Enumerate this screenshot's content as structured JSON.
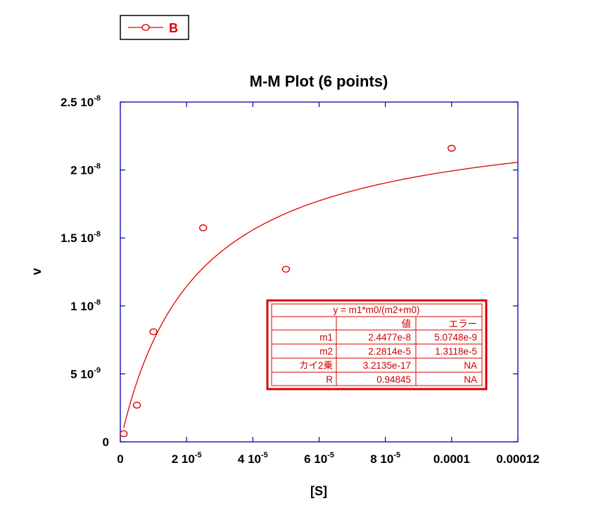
{
  "legend": {
    "label": "B"
  },
  "chart_data": {
    "type": "scatter",
    "title": "M-M Plot (6 points)",
    "xlabel": "[S]",
    "ylabel": "v",
    "xlim": [
      0,
      0.00012
    ],
    "ylim": [
      0,
      2.5e-08
    ],
    "x_ticks": [
      {
        "value": 0,
        "mant": "0",
        "exp": ""
      },
      {
        "value": 2e-05,
        "mant": "2 10",
        "exp": "-5"
      },
      {
        "value": 4e-05,
        "mant": "4 10",
        "exp": "-5"
      },
      {
        "value": 6e-05,
        "mant": "6 10",
        "exp": "-5"
      },
      {
        "value": 8e-05,
        "mant": "8 10",
        "exp": "-5"
      },
      {
        "value": 0.0001,
        "mant": "0.0001",
        "exp": ""
      },
      {
        "value": 0.00012,
        "mant": "0.00012",
        "exp": ""
      }
    ],
    "y_ticks": [
      {
        "value": 0,
        "mant": "0",
        "exp": ""
      },
      {
        "value": 5e-09,
        "mant": "5 10",
        "exp": "-9"
      },
      {
        "value": 1e-08,
        "mant": "1 10",
        "exp": "-8"
      },
      {
        "value": 1.5e-08,
        "mant": "1.5 10",
        "exp": "-8"
      },
      {
        "value": 2e-08,
        "mant": "2 10",
        "exp": "-8"
      },
      {
        "value": 2.5e-08,
        "mant": "2.5 10",
        "exp": "-8"
      }
    ],
    "series": [
      {
        "name": "B",
        "color": "#dd0000",
        "marker": "open-circle",
        "x": [
          1e-06,
          5e-06,
          1e-05,
          2.5e-05,
          5e-05,
          0.0001
        ],
        "y": [
          6e-10,
          2.7e-09,
          8.1e-09,
          1.575e-08,
          1.27e-08,
          2.16e-08
        ]
      }
    ],
    "fit": {
      "model": "michaelis-menten",
      "m1": 2.4477e-08,
      "m2": 2.2814e-05,
      "color": "#dd0000"
    },
    "grid": false,
    "frame_color": "#0000aa"
  },
  "fit_table": {
    "equation": "y = m1*m0/(m2+m0)",
    "headers": [
      "",
      "値",
      "エラー"
    ],
    "rows": [
      [
        "m1",
        "2.4477e-8",
        "5.0748e-9"
      ],
      [
        "m2",
        "2.2814e-5",
        "1.3118e-5"
      ],
      [
        "カイ2乗",
        "3.2135e-17",
        "NA"
      ],
      [
        "R",
        "0.94845",
        "NA"
      ]
    ]
  }
}
